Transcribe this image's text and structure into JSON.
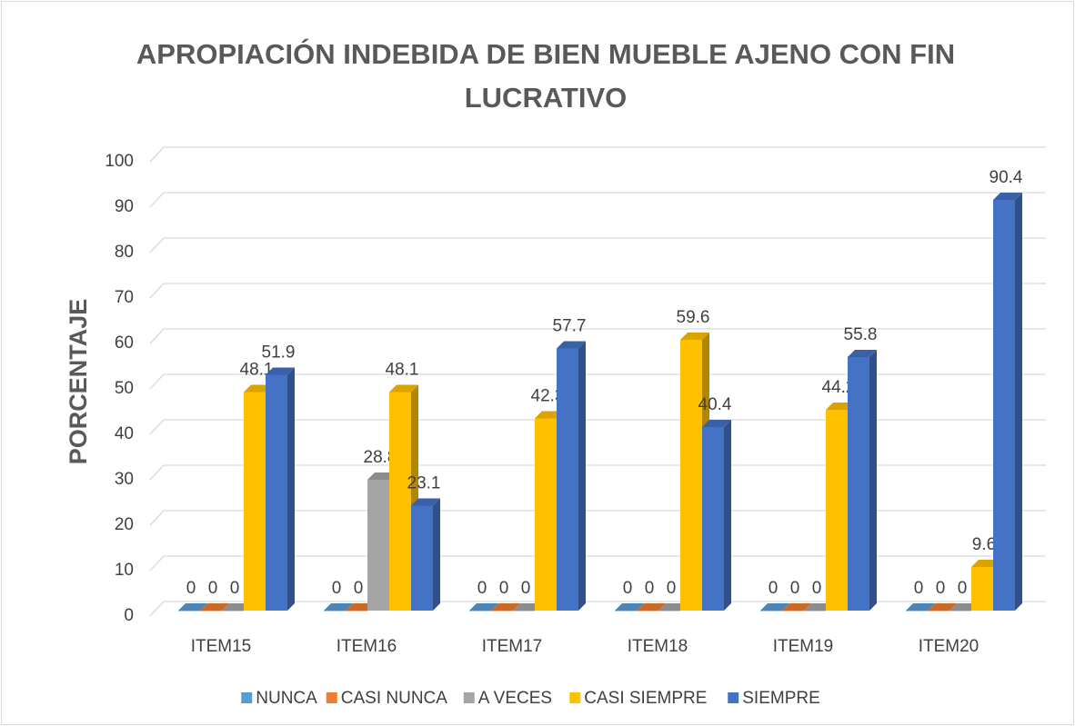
{
  "chart_data": {
    "type": "bar3d",
    "title": "APROPIACIÓN INDEBIDA DE BIEN MUEBLE AJENO CON FIN LUCRATIVO",
    "y_label": "PORCENTAJE",
    "categories": [
      "ITEM15",
      "ITEM16",
      "ITEM17",
      "ITEM18",
      "ITEM19",
      "ITEM20"
    ],
    "series": [
      {
        "name": "NUNCA",
        "color": "#5b9bd5",
        "values": [
          0,
          0,
          0,
          0,
          0,
          0
        ]
      },
      {
        "name": "CASI NUNCA",
        "color": "#ed7d31",
        "values": [
          0,
          0,
          0,
          0,
          0,
          0
        ]
      },
      {
        "name": "A VECES",
        "color": "#a5a5a5",
        "values": [
          0,
          28.8,
          0,
          0,
          0,
          0
        ]
      },
      {
        "name": "CASI SIEMPRE",
        "color": "#ffc000",
        "values": [
          48.1,
          48.1,
          42.3,
          59.6,
          44.2,
          9.6
        ]
      },
      {
        "name": "SIEMPRE",
        "color": "#4472c4",
        "values": [
          51.9,
          23.1,
          57.7,
          40.4,
          55.8,
          90.4
        ]
      }
    ],
    "ylim": [
      0,
      100
    ],
    "yticks": [
      0,
      10,
      20,
      30,
      40,
      50,
      60,
      70,
      80,
      90,
      100
    ],
    "grid": true,
    "legend": "bottom"
  }
}
